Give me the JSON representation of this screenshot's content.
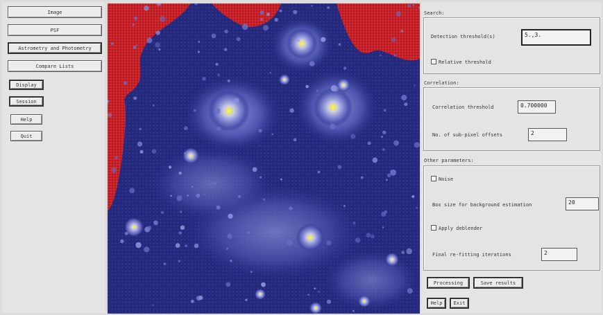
{
  "left_panel": {
    "image_label": "Image",
    "psf_label": "PSF",
    "astrometry_label": "Astrometry and Photometry",
    "compare_label": "Compare Lists",
    "display_label": "Display",
    "session_label": "Session",
    "help_label": "Help",
    "quit_label": "Quit"
  },
  "search": {
    "section_label": "Search:",
    "threshold_label": "Detection threshold(s)",
    "threshold_value": "5.,3.",
    "relative_label": "Relative threshold"
  },
  "correlation": {
    "section_label": "Correlation:",
    "threshold_label": "Correlation threshold",
    "threshold_value": "0.700000",
    "offsets_label": "No. of sub-pixel offsets",
    "offsets_value": "2"
  },
  "other": {
    "section_label": "Other parameters:",
    "noise_label": "Noise",
    "boxsize_label": "Box size for background estimation",
    "boxsize_value": "20",
    "deblender_label": "Apply deblender",
    "refit_label": "Final re-fitting iterations",
    "refit_value": "2"
  },
  "actions": {
    "processing_label": "Processing",
    "save_label": "Save results",
    "help_label": "Help",
    "exit_label": "Exit"
  },
  "colors": {
    "background_red": "#c8202a",
    "sky_blue": "#2a2f86",
    "star_yellow": "#f2ec52"
  }
}
